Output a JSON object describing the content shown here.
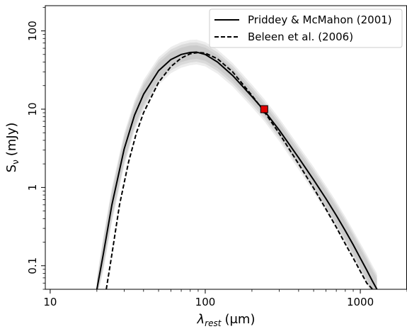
{
  "chart_data": {
    "type": "line",
    "xscale": "log",
    "yscale": "log",
    "xlim": [
      9.3,
      2000
    ],
    "ylim": [
      0.05,
      210
    ],
    "xlabel_symbol": "λ",
    "xlabel_subscript": "rest",
    "xlabel_unit": "(μm)",
    "ylabel_symbol": "S",
    "ylabel_subscript": "ν",
    "ylabel_unit": "(mJy)",
    "x_ticks": [
      {
        "value": 10,
        "label": "10"
      },
      {
        "value": 100,
        "label": "100"
      },
      {
        "value": 1000,
        "label": "1000"
      }
    ],
    "y_ticks": [
      {
        "value": 0.1,
        "label": "0.1"
      },
      {
        "value": 1,
        "label": "1"
      },
      {
        "value": 10,
        "label": "10"
      },
      {
        "value": 100,
        "label": "100"
      }
    ],
    "legend_position": "top-right",
    "series": [
      {
        "name": "Priddey & McMahon (2001)",
        "style": "solid",
        "color": "#000000",
        "x": [
          20,
          22,
          25,
          30,
          35,
          40,
          50,
          60,
          70,
          80,
          88,
          100,
          120,
          150,
          200,
          240,
          300,
          400,
          500,
          600,
          700,
          800,
          900,
          1000,
          1100,
          1200,
          1280
        ],
        "y": [
          0.05,
          0.14,
          0.6,
          3.1,
          8.4,
          15.5,
          31,
          43,
          50,
          53,
          53.5,
          50,
          40,
          27,
          14.5,
          9.6,
          5.4,
          2.4,
          1.25,
          0.72,
          0.44,
          0.28,
          0.185,
          0.125,
          0.088,
          0.063,
          0.05
        ]
      },
      {
        "name": "Beleen et al. (2006)",
        "style": "dashed",
        "color": "#000000",
        "x": [
          23,
          25,
          28,
          32,
          36,
          40,
          50,
          60,
          70,
          80,
          90,
          100,
          120,
          150,
          200,
          240,
          300,
          400,
          500,
          600,
          700,
          800,
          900,
          1000,
          1100,
          1200
        ],
        "y": [
          0.05,
          0.14,
          0.6,
          2.1,
          5,
          9,
          22,
          35,
          45,
          51,
          53,
          52,
          44,
          30,
          15,
          9.3,
          4.9,
          2.0,
          0.98,
          0.53,
          0.31,
          0.19,
          0.125,
          0.085,
          0.06,
          0.05
        ]
      }
    ],
    "uncertainty_band": {
      "color": "#b8b8b8",
      "x": [
        20,
        22,
        25,
        30,
        35,
        40,
        50,
        60,
        70,
        80,
        88,
        100,
        120,
        150,
        200,
        240,
        300,
        400,
        500,
        600,
        700,
        800,
        900,
        1000,
        1100,
        1200,
        1280
      ],
      "lower": [
        0.045,
        0.1,
        0.42,
        2.2,
        6.2,
        11.5,
        24,
        34,
        40,
        43,
        44,
        41.5,
        33.5,
        23,
        12.5,
        8.3,
        4.6,
        2.0,
        1.02,
        0.58,
        0.35,
        0.22,
        0.145,
        0.098,
        0.068,
        0.048,
        0.038
      ],
      "upper": [
        0.06,
        0.2,
        0.85,
        4.2,
        11,
        20,
        39,
        53,
        61,
        65,
        65.5,
        61,
        49,
        33,
        17.5,
        11.5,
        6.5,
        2.9,
        1.55,
        0.9,
        0.56,
        0.36,
        0.24,
        0.165,
        0.118,
        0.085,
        0.068
      ]
    },
    "data_point": {
      "x": 240,
      "y": 10,
      "yerr": 1.2,
      "color": "#e00000",
      "edge_color": "#000000",
      "marker": "square"
    }
  }
}
